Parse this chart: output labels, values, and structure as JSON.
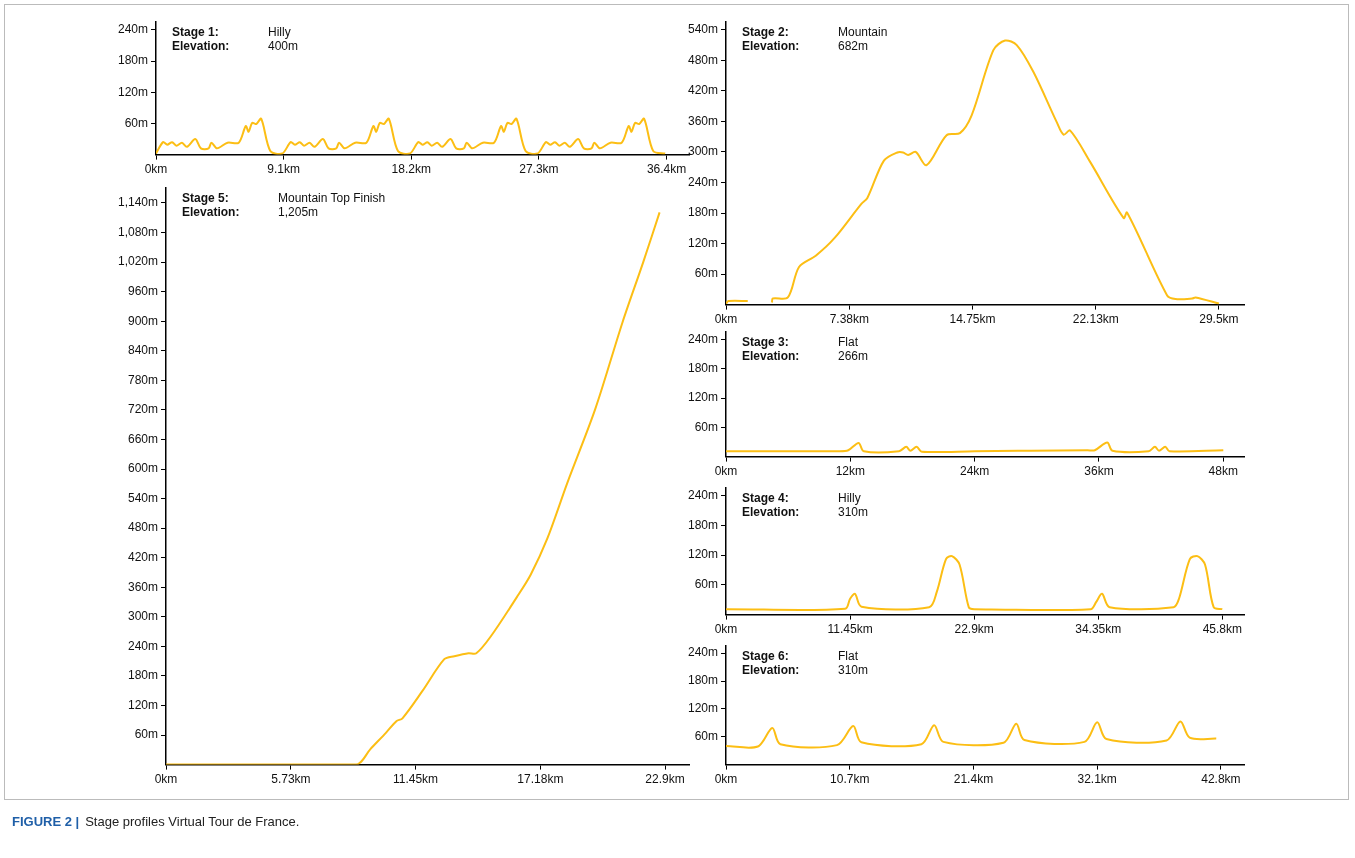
{
  "chart_data": [
    {
      "type": "line",
      "annotations": [
        "Stage 1:",
        "Hilly",
        "Elevation:",
        "400m"
      ],
      "color": "#fcbe14",
      "x": [
        0,
        0.5,
        0.8,
        1.15,
        1.45,
        1.85,
        2.2,
        2.8,
        3.2,
        3.75,
        3.95,
        4.35,
        5.1,
        5.9,
        6.4,
        6.6,
        6.85,
        7.15,
        7.5,
        8.15,
        9.0,
        9.6,
        9.9,
        10.25,
        10.55,
        10.95,
        11.3,
        11.9,
        12.3,
        12.85,
        13.05,
        13.45,
        14.2,
        15.0,
        15.5,
        15.7,
        15.95,
        16.25,
        16.6,
        17.25,
        18.1,
        18.7,
        19.0,
        19.35,
        19.65,
        20.05,
        20.4,
        21.0,
        21.4,
        21.95,
        22.15,
        22.55,
        23.3,
        24.1,
        24.6,
        24.8,
        25.05,
        25.35,
        25.7,
        26.35,
        27.2,
        27.8,
        28.1,
        28.45,
        28.75,
        29.15,
        29.5,
        30.1,
        30.5,
        31.05,
        31.25,
        31.65,
        32.4,
        33.2,
        33.7,
        33.9,
        34.15,
        34.45,
        34.8,
        35.45,
        36.3
      ],
      "values": [
        2,
        24,
        19,
        24,
        17,
        23,
        15,
        30,
        12,
        12,
        23,
        12,
        23,
        23,
        55,
        44,
        61,
        59,
        69,
        7,
        2,
        24,
        19,
        24,
        17,
        23,
        15,
        30,
        12,
        12,
        23,
        12,
        23,
        23,
        55,
        44,
        61,
        59,
        69,
        7,
        2,
        24,
        19,
        24,
        17,
        23,
        15,
        30,
        12,
        12,
        23,
        12,
        23,
        23,
        55,
        44,
        61,
        59,
        69,
        7,
        2,
        24,
        19,
        24,
        17,
        23,
        15,
        30,
        12,
        12,
        23,
        12,
        23,
        23,
        55,
        44,
        61,
        59,
        69,
        7,
        2
      ],
      "xlim": [
        0,
        38
      ],
      "xticks": [
        {
          "value": 0,
          "label": "0km"
        },
        {
          "value": 9.1,
          "label": "9.1km"
        },
        {
          "value": 18.2,
          "label": "18.2km"
        },
        {
          "value": 27.3,
          "label": "27.3km"
        },
        {
          "value": 36.4,
          "label": "36.4km"
        }
      ],
      "ylim": [
        0,
        255
      ],
      "yticks": [
        {
          "value": 60,
          "label": "60m"
        },
        {
          "value": 120,
          "label": "120m"
        },
        {
          "value": 180,
          "label": "180m"
        },
        {
          "value": 240,
          "label": "240m"
        }
      ]
    },
    {
      "type": "line",
      "annotations": [
        "Stage 2:",
        "Mountain",
        "Elevation:",
        "682m"
      ],
      "color": "#fcbe14",
      "x": [
        0,
        0.15,
        1.3,
        2.0,
        2.75,
        2.8,
        3.7,
        4.37,
        5.37,
        6.5,
        8.1,
        8.45,
        9.45,
        10.25,
        10.6,
        10.9,
        11.35,
        12.0,
        13.2,
        14.0,
        14.7,
        16.0,
        16.7,
        17.4,
        18.4,
        19.8,
        20.2,
        20.6,
        21.8,
        23.8,
        24.0,
        26.4,
        26.9,
        27.9,
        28.1,
        29.5
      ],
      "values": [
        2,
        7,
        7,
        null,
        4,
        12,
        14,
        74,
        96,
        131,
        198,
        209,
        283,
        299,
        299,
        294,
        300,
        274,
        333,
        337,
        372,
        500,
        519,
        510,
        457,
        358,
        334,
        342,
        280,
        170,
        181,
        18,
        11,
        12,
        14,
        2
      ],
      "xlim": [
        0,
        31
      ],
      "xticks": [
        {
          "value": 0,
          "label": "0km"
        },
        {
          "value": 7.38,
          "label": "7.38km"
        },
        {
          "value": 14.75,
          "label": "14.75km"
        },
        {
          "value": 22.13,
          "label": "22.13km"
        },
        {
          "value": 29.5,
          "label": "29.5km"
        }
      ],
      "ylim": [
        0,
        555
      ],
      "yticks": [
        {
          "value": 60,
          "label": "60m"
        },
        {
          "value": 120,
          "label": "120m"
        },
        {
          "value": 180,
          "label": "180m"
        },
        {
          "value": 240,
          "label": "240m"
        },
        {
          "value": 300,
          "label": "300m"
        },
        {
          "value": 360,
          "label": "360m"
        },
        {
          "value": 420,
          "label": "420m"
        },
        {
          "value": 480,
          "label": "480m"
        },
        {
          "value": 540,
          "label": "540m"
        }
      ]
    },
    {
      "type": "line",
      "annotations": [
        "Stage 5:",
        "Mountain Top Finish",
        "Elevation:",
        "1,205m"
      ],
      "color": "#fcbe14",
      "x": [
        0,
        8.73,
        9.37,
        10.1,
        10.57,
        10.85,
        11.76,
        12.77,
        13.23,
        13.88,
        14.24,
        14.9,
        16.1,
        16.74,
        17.5,
        18.4,
        19.7,
        20.95,
        21.9,
        22.65
      ],
      "values": [
        0,
        0,
        31,
        65,
        88,
        94,
        149,
        214,
        220,
        226,
        226,
        260,
        340,
        386,
        459,
        570,
        722,
        898,
        1020,
        1121
      ],
      "xlim": [
        0,
        24
      ],
      "xticks": [
        {
          "value": 0,
          "label": "0km"
        },
        {
          "value": 5.73,
          "label": "5.73km"
        },
        {
          "value": 11.45,
          "label": "11.45km"
        },
        {
          "value": 17.18,
          "label": "17.18km"
        },
        {
          "value": 22.9,
          "label": "22.9km"
        }
      ],
      "ylim": [
        0,
        1170
      ],
      "yticks": [
        {
          "value": 60,
          "label": "60m"
        },
        {
          "value": 120,
          "label": "120m"
        },
        {
          "value": 180,
          "label": "180m"
        },
        {
          "value": 240,
          "label": "240m"
        },
        {
          "value": 300,
          "label": "300m"
        },
        {
          "value": 360,
          "label": "360m"
        },
        {
          "value": 420,
          "label": "420m"
        },
        {
          "value": 480,
          "label": "480m"
        },
        {
          "value": 540,
          "label": "540m"
        },
        {
          "value": 600,
          "label": "600m"
        },
        {
          "value": 660,
          "label": "660m"
        },
        {
          "value": 720,
          "label": "720m"
        },
        {
          "value": 780,
          "label": "780m"
        },
        {
          "value": 840,
          "label": "840m"
        },
        {
          "value": 900,
          "label": "900m"
        },
        {
          "value": 960,
          "label": "960m"
        },
        {
          "value": 1020,
          "label": "1,020m"
        },
        {
          "value": 1080,
          "label": "1,080m"
        },
        {
          "value": 1140,
          "label": "1,140m"
        }
      ]
    },
    {
      "type": "line",
      "annotations": [
        "Stage 3:",
        "Flat",
        "Elevation:",
        "266m"
      ],
      "color": "#fcbe14",
      "x": [
        0,
        10.9,
        11.8,
        12.8,
        13.3,
        16.7,
        17.4,
        17.8,
        18.4,
        18.9,
        24,
        34.9,
        35.6,
        36.8,
        37.3,
        40.8,
        41.4,
        41.8,
        42.4,
        42.8,
        48
      ],
      "values": [
        11,
        11,
        13,
        28,
        11,
        11,
        20,
        12,
        20,
        10,
        11,
        13,
        13,
        29,
        12,
        11,
        20,
        12,
        20,
        11,
        13
      ],
      "xlim": [
        0,
        50
      ],
      "xticks": [
        {
          "value": 0,
          "label": "0km"
        },
        {
          "value": 12,
          "label": "12km"
        },
        {
          "value": 24,
          "label": "24km"
        },
        {
          "value": 36,
          "label": "36km"
        },
        {
          "value": 48,
          "label": "48km"
        }
      ],
      "ylim": [
        0,
        255
      ],
      "yticks": [
        {
          "value": 60,
          "label": "60m"
        },
        {
          "value": 120,
          "label": "120m"
        },
        {
          "value": 180,
          "label": "180m"
        },
        {
          "value": 240,
          "label": "240m"
        }
      ]
    },
    {
      "type": "line",
      "annotations": [
        "Stage 4:",
        "Hilly",
        "Elevation:",
        "310m"
      ],
      "color": "#fcbe14",
      "x": [
        0,
        11,
        11.45,
        11.9,
        12.5,
        18.75,
        19.45,
        20.3,
        20.85,
        21.55,
        22.4,
        22.9,
        33.65,
        34.15,
        34.7,
        35.4,
        41.3,
        41.8,
        42.8,
        43.5,
        44.2,
        45,
        45.8
      ],
      "values": [
        11,
        12,
        32,
        42,
        16,
        15,
        46,
        112,
        118,
        101,
        15,
        11,
        11,
        25,
        42,
        15,
        15,
        32,
        112,
        118,
        101,
        15,
        11
      ],
      "xlim": [
        0,
        47.8
      ],
      "xticks": [
        {
          "value": 0,
          "label": "0km"
        },
        {
          "value": 11.45,
          "label": "11.45km"
        },
        {
          "value": 22.9,
          "label": "22.9km"
        },
        {
          "value": 34.35,
          "label": "34.35km"
        },
        {
          "value": 45.8,
          "label": "45.8km"
        }
      ],
      "ylim": [
        0,
        255
      ],
      "yticks": [
        {
          "value": 60,
          "label": "60m"
        },
        {
          "value": 120,
          "label": "120m"
        },
        {
          "value": 180,
          "label": "180m"
        },
        {
          "value": 240,
          "label": "240m"
        }
      ]
    },
    {
      "type": "line",
      "annotations": [
        "Stage 6:",
        "Flat",
        "Elevation:",
        "310m",
        "FIGURE 2 |",
        "Stage profiles Virtual Tour de France."
      ],
      "color": "#fcbe14",
      "x": [
        0,
        2.76,
        4.0,
        4.7,
        9.6,
        11.0,
        11.7,
        16.9,
        18.0,
        18.8,
        24.0,
        25.1,
        25.8,
        31.0,
        32.1,
        32.9,
        38.1,
        39.3,
        40.1,
        42.4
      ],
      "values": [
        40,
        39,
        79,
        44,
        42,
        83,
        48,
        44,
        85,
        49,
        47,
        88,
        53,
        49,
        91,
        55,
        52,
        93,
        58,
        56
      ],
      "xlim": [
        0,
        44.8
      ],
      "xticks": [
        {
          "value": 0,
          "label": "0km"
        },
        {
          "value": 10.7,
          "label": "10.7km"
        },
        {
          "value": 21.4,
          "label": "21.4km"
        },
        {
          "value": 32.1,
          "label": "32.1km"
        },
        {
          "value": 42.8,
          "label": "42.8km"
        }
      ],
      "ylim": [
        0,
        255
      ],
      "yticks": [
        {
          "value": 60,
          "label": "60m"
        },
        {
          "value": 120,
          "label": "120m"
        },
        {
          "value": 180,
          "label": "180m"
        },
        {
          "value": 240,
          "label": "240m"
        }
      ]
    }
  ]
}
